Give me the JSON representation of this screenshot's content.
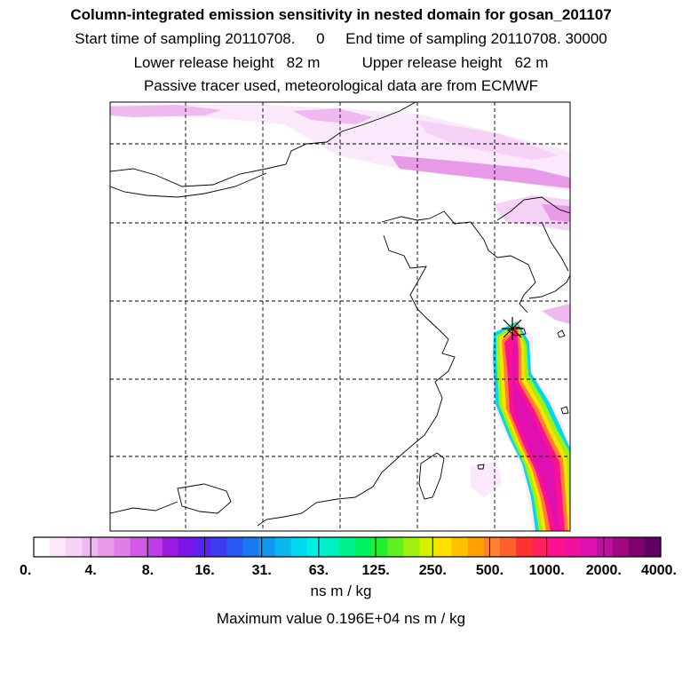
{
  "header": {
    "title": "Column-integrated emission sensitivity in nested domain for gosan_201107",
    "sampling": "Start time of sampling 20110708.     0     End time of sampling 20110708. 30000",
    "release": "Lower release height   82 m          Upper release height   62 m",
    "tracer": "Passive tracer used, meteorological data are from ECMWF"
  },
  "colorbar": {
    "colors": [
      "#ffffff",
      "#fbe9fb",
      "#f7d2f7",
      "#f0b8f0",
      "#e89ae8",
      "#e07de6",
      "#d45ae6",
      "#c03ae6",
      "#9a1ae0",
      "#7a16ea",
      "#5a24f0",
      "#3c3cf0",
      "#2a58f2",
      "#1c78f0",
      "#1298f0",
      "#0ab8f0",
      "#00d8f0",
      "#00f0e8",
      "#00f0c0",
      "#00f090",
      "#00f060",
      "#20f030",
      "#60f020",
      "#a0f010",
      "#d8f000",
      "#ffe000",
      "#ffc000",
      "#ffa000",
      "#ff8030",
      "#ff6030",
      "#ff3030",
      "#ff2060",
      "#ff1090",
      "#f010a0",
      "#e010b0",
      "#c010a0",
      "#a00880",
      "#800070",
      "#600060"
    ],
    "tick_labels": [
      "0.",
      "4.",
      "8.",
      "16.",
      "31.",
      "63.",
      "125.",
      "250.",
      "500.",
      "1000.",
      "2000.",
      "4000."
    ],
    "units": "ns m / kg"
  },
  "footer": {
    "max_value": "Maximum value  0.196E+04 ns m / kg"
  },
  "map": {
    "receptor": "Gosan",
    "marker_icon": "star-marker-icon"
  }
}
